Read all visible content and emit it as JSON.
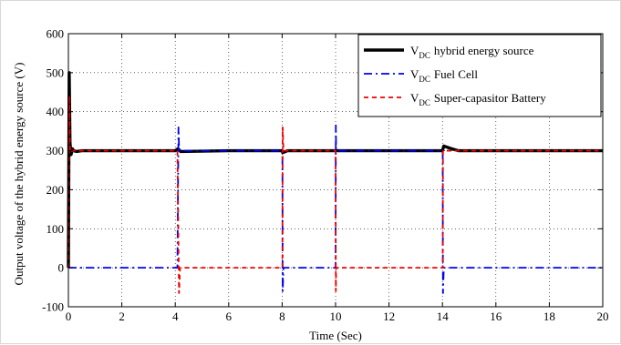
{
  "chart_data": {
    "type": "line",
    "title": "",
    "xlabel": "Time (Sec)",
    "ylabel": "Output voltage of the hybrid energy source (V)",
    "xlim": [
      0,
      20
    ],
    "ylim": [
      -100,
      600
    ],
    "xticks": [
      0,
      2,
      4,
      6,
      8,
      10,
      12,
      14,
      16,
      18,
      20
    ],
    "yticks": [
      -100,
      0,
      100,
      200,
      300,
      400,
      500,
      600
    ],
    "grid": true,
    "legend": "top-right",
    "series": [
      {
        "name": "hybrid energy source",
        "label_main": "V",
        "label_sub": "DC",
        "style": "solid",
        "color": "#000000",
        "x": [
          0,
          0.03,
          0.06,
          0.1,
          0.15,
          0.2,
          0.3,
          0.5,
          2,
          4,
          4.1,
          4.2,
          6,
          8,
          8.02,
          8.2,
          10,
          12,
          14,
          14.05,
          14.3,
          14.6,
          16,
          18,
          20
        ],
        "y": [
          0,
          500,
          320,
          290,
          305,
          300,
          298,
          300,
          300,
          300,
          305,
          298,
          300,
          300,
          295,
          300,
          300,
          300,
          300,
          312,
          306,
          300,
          300,
          300,
          300
        ]
      },
      {
        "name": "Fuel Cell",
        "label_main": "V",
        "label_sub": "DC",
        "style": "dashdot",
        "color": "#0000ee",
        "x": [
          0,
          0.03,
          0.06,
          0.1,
          0.15,
          0.2,
          0.5,
          4,
          4.08,
          4.12,
          4.14,
          4.2,
          6,
          8,
          8.01,
          8.02,
          8.05,
          8.1,
          10,
          10.01,
          10.02,
          10.05,
          12,
          14,
          14.01,
          14.02,
          14.05,
          14.1,
          16,
          18,
          20
        ],
        "y": [
          0,
          0,
          0,
          0,
          0,
          0,
          0,
          0,
          0,
          360,
          310,
          300,
          300,
          300,
          300,
          -60,
          0,
          0,
          0,
          365,
          300,
          300,
          300,
          300,
          300,
          -65,
          0,
          0,
          0,
          0,
          0
        ]
      },
      {
        "name": "Super-capasitor Battery",
        "label_main": "V",
        "label_sub": "DC",
        "style": "dashed",
        "color": "#ee0000",
        "x": [
          0,
          0.03,
          0.06,
          0.1,
          0.15,
          0.2,
          0.5,
          4,
          4.08,
          4.14,
          4.18,
          4.25,
          6,
          8,
          8.01,
          8.02,
          8.05,
          8.1,
          10,
          10.01,
          10.02,
          10.05,
          12,
          14,
          14.01,
          14.02,
          14.05,
          14.1,
          16,
          18,
          20
        ],
        "y": [
          0,
          440,
          300,
          295,
          300,
          300,
          300,
          300,
          300,
          -65,
          0,
          0,
          0,
          0,
          0,
          360,
          300,
          300,
          300,
          -60,
          0,
          0,
          0,
          0,
          0,
          300,
          300,
          300,
          300,
          300,
          300
        ]
      }
    ]
  }
}
